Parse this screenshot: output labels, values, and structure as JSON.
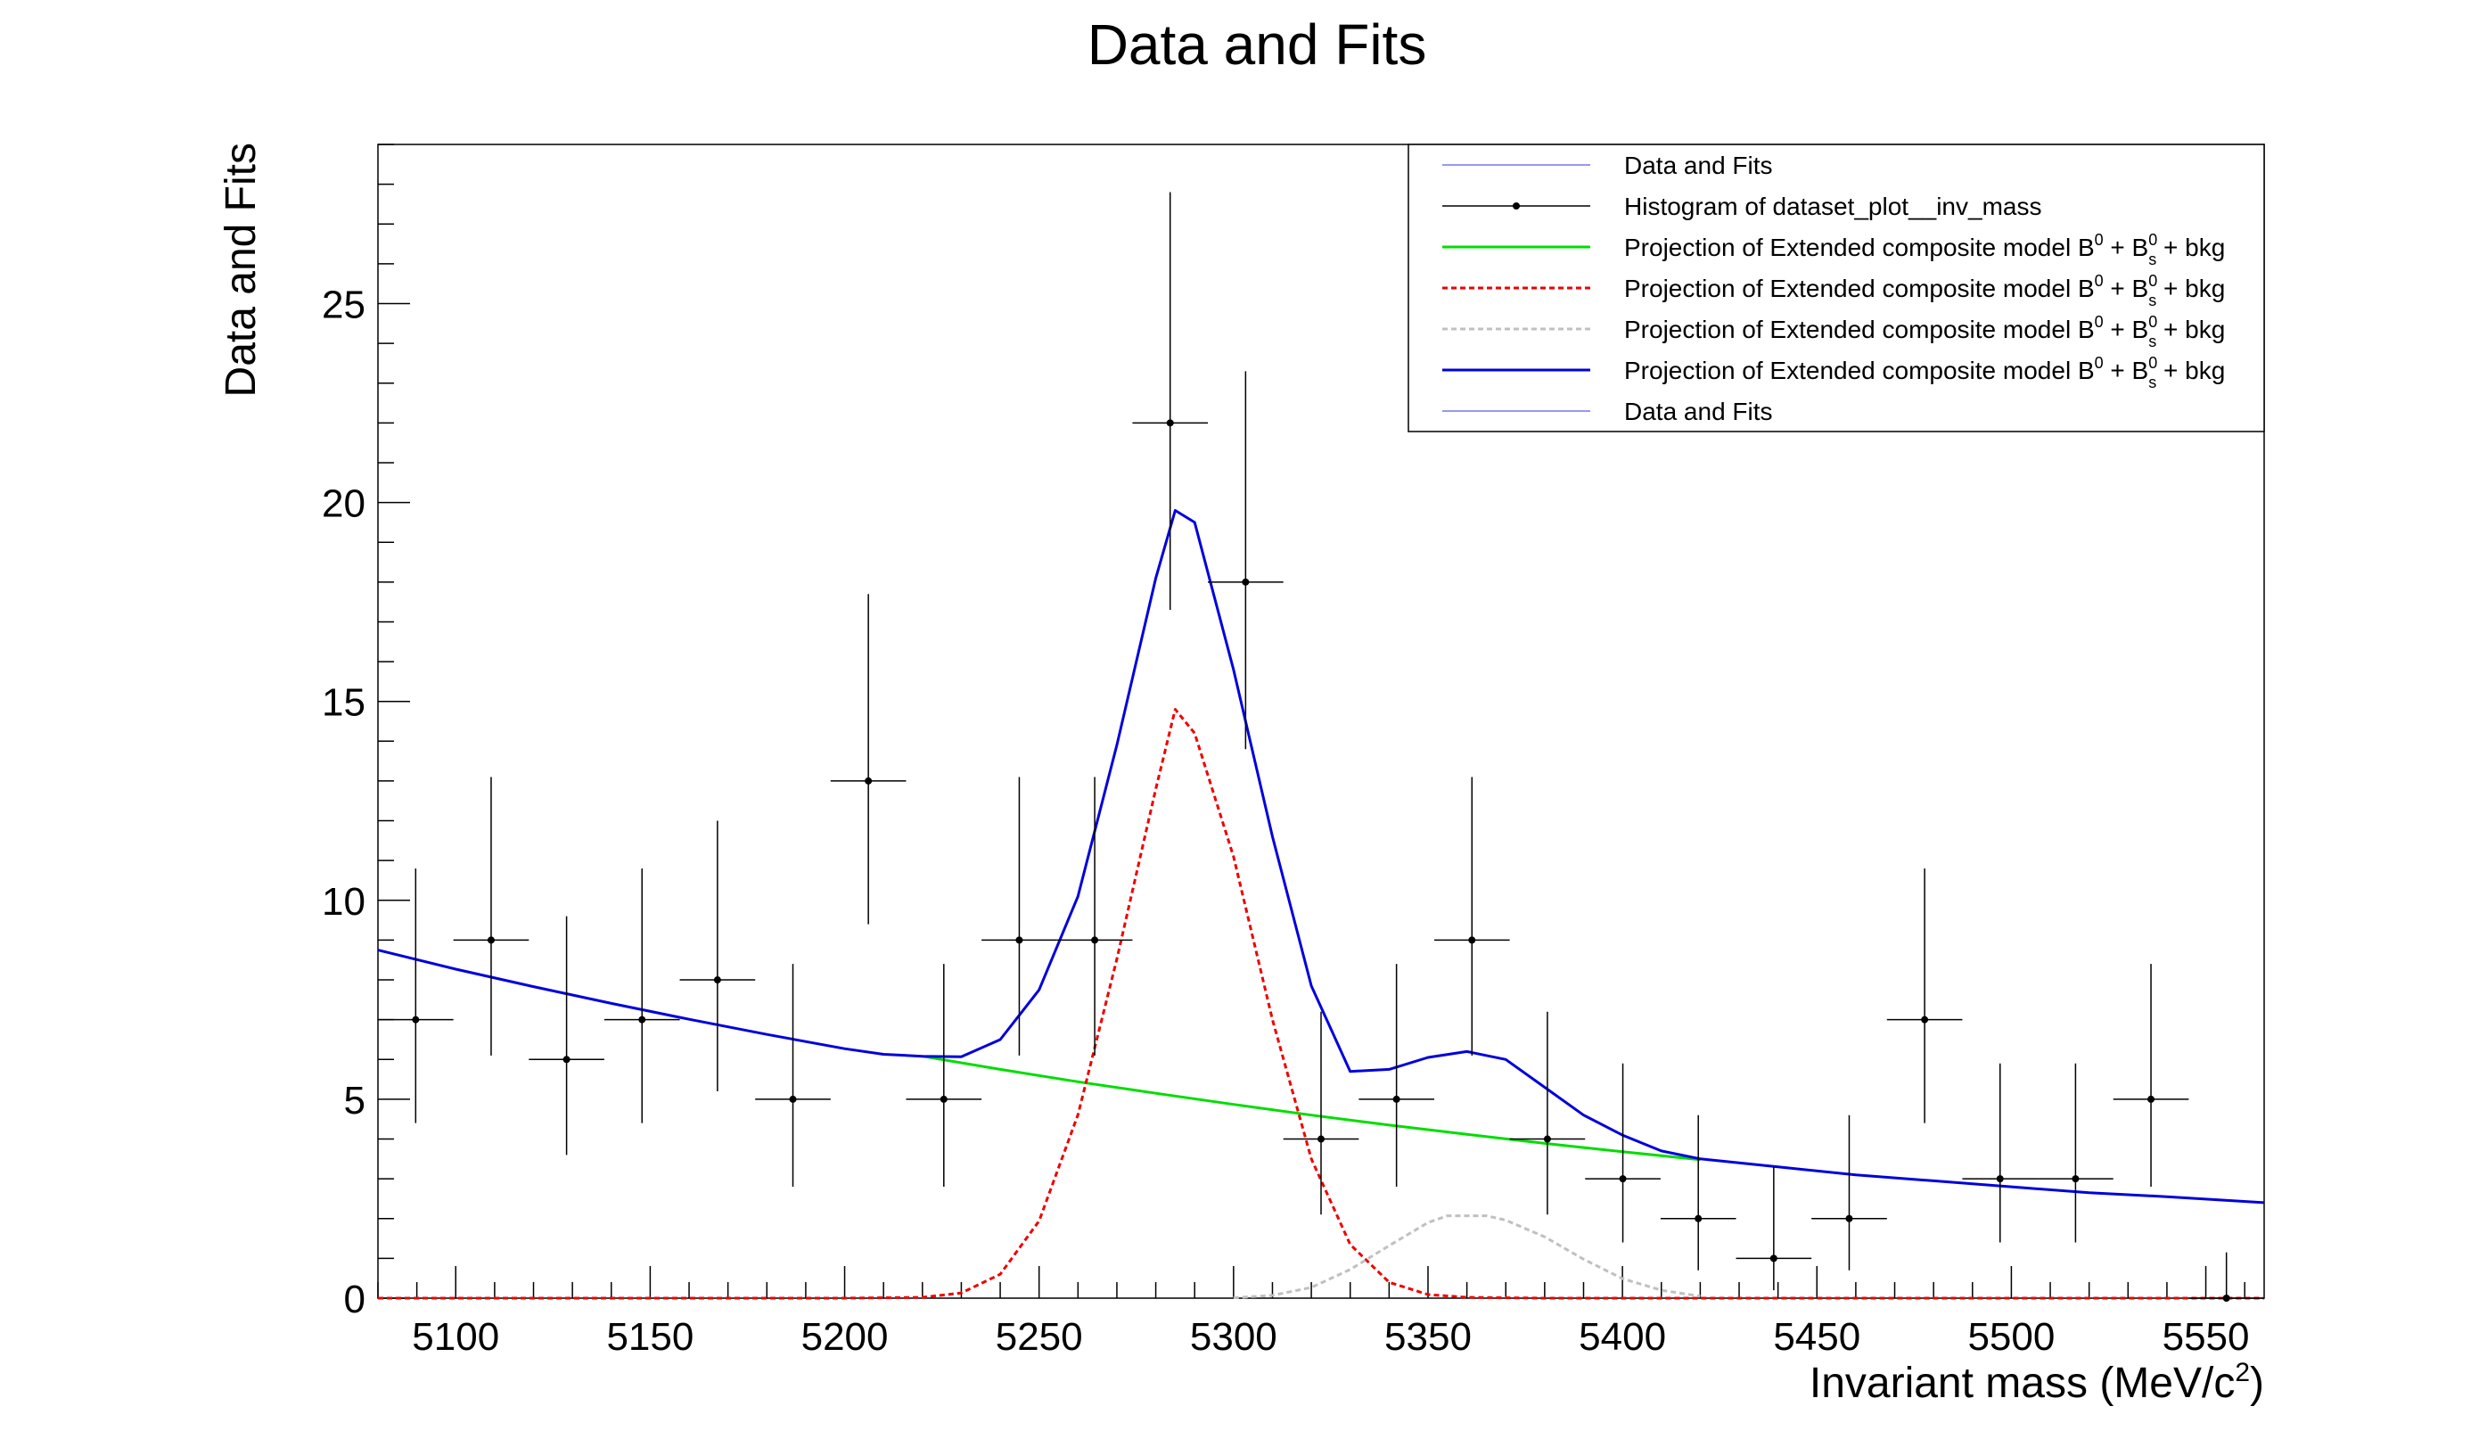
{
  "chart_data": {
    "type": "line",
    "title": "Data and Fits",
    "xlabel": "Invariant mass (MeV/c",
    "xlabel_sup": "2",
    "xlabel_end": ")",
    "ylabel": "Data and Fits",
    "xlim": [
      5080,
      5565
    ],
    "ylim": [
      0,
      29
    ],
    "xticks": [
      5100,
      5150,
      5200,
      5250,
      5300,
      5350,
      5400,
      5450,
      5500,
      5550
    ],
    "yticks": [
      0,
      5,
      10,
      15,
      20,
      25
    ],
    "grid": false,
    "legend_position": "top-right",
    "legend": [
      {
        "label": "Data and Fits",
        "style": "line",
        "color": "#7777ee",
        "dash": "",
        "width": 1.5
      },
      {
        "label": "Histogram of dataset_plot__inv_mass",
        "style": "marker",
        "color": "#000000",
        "dash": "",
        "width": 1.5
      },
      {
        "label": "Projection of Extended composite model B",
        "sup1": "0",
        "mid": " + B",
        "sup2": "0",
        "sub2": "s",
        "tail": " + bkg",
        "style": "line",
        "color": "#00dd00",
        "dash": "",
        "width": 3
      },
      {
        "label": "Projection of Extended composite model B",
        "sup1": "0",
        "mid": " + B",
        "sup2": "0",
        "sub2": "s",
        "tail": " + bkg",
        "style": "line",
        "color": "#ee0000",
        "dash": "6,4",
        "width": 3
      },
      {
        "label": "Projection of Extended composite model B",
        "sup1": "0",
        "mid": " + B",
        "sup2": "0",
        "sub2": "s",
        "tail": " + bkg",
        "style": "line",
        "color": "#c0c0c0",
        "dash": "6,4",
        "width": 3
      },
      {
        "label": "Projection of Extended composite model B",
        "sup1": "0",
        "mid": " + B",
        "sup2": "0",
        "sub2": "s",
        "tail": " + bkg",
        "style": "line",
        "color": "#0000dd",
        "dash": "",
        "width": 3
      },
      {
        "label": "Data and Fits",
        "style": "line",
        "color": "#7777ee",
        "dash": "",
        "width": 1.5
      }
    ],
    "histogram": {
      "name": "Histogram of dataset_plot__inv_mass",
      "bin_half_width": 9.7,
      "x": [
        5089.7,
        5109.1,
        5128.5,
        5147.9,
        5167.3,
        5186.7,
        5206.1,
        5225.5,
        5244.9,
        5264.3,
        5283.7,
        5303.1,
        5322.5,
        5341.9,
        5361.3,
        5380.7,
        5400.1,
        5419.5,
        5438.9,
        5458.3,
        5477.7,
        5497.1,
        5516.5,
        5535.9,
        5555.3
      ],
      "y": [
        7,
        9,
        6,
        7,
        8,
        5,
        13,
        5,
        9,
        9,
        22,
        18,
        4,
        5,
        9,
        4,
        3,
        2,
        1,
        2,
        7,
        3,
        3,
        5,
        0
      ],
      "err_low": [
        2.6,
        2.9,
        2.4,
        2.6,
        2.8,
        2.2,
        3.6,
        2.2,
        2.9,
        2.9,
        4.7,
        4.2,
        1.9,
        2.2,
        2.9,
        1.9,
        1.6,
        1.3,
        0.8,
        1.3,
        2.6,
        1.6,
        1.6,
        2.2,
        0
      ],
      "err_high": [
        3.8,
        4.1,
        3.6,
        3.8,
        4.0,
        3.4,
        4.7,
        3.4,
        4.1,
        4.1,
        5.8,
        5.3,
        3.2,
        3.4,
        4.1,
        3.2,
        2.9,
        2.6,
        2.3,
        2.6,
        3.8,
        2.9,
        2.9,
        3.4,
        1.15
      ]
    },
    "series": [
      {
        "color": "#00dd00",
        "dash": "",
        "width": 3,
        "x": [
          5220,
          5240,
          5260,
          5280,
          5300,
          5320,
          5340,
          5360,
          5380,
          5400,
          5420
        ],
        "y": [
          6.08,
          5.75,
          5.44,
          5.15,
          4.87,
          4.6,
          4.35,
          4.12,
          3.89,
          3.68,
          3.48
        ]
      },
      {
        "color": "#ee0000",
        "dash": "6,4",
        "width": 3,
        "x": [
          5080,
          5200,
          5220,
          5230,
          5240,
          5250,
          5260,
          5270,
          5280,
          5285,
          5290,
          5300,
          5310,
          5320,
          5330,
          5340,
          5350,
          5360,
          5380,
          5565
        ],
        "y": [
          0,
          0,
          0.02,
          0.13,
          0.6,
          1.94,
          4.61,
          8.52,
          12.8,
          14.8,
          14.2,
          11.1,
          7.0,
          3.5,
          1.35,
          0.4,
          0.09,
          0.02,
          0,
          0
        ]
      },
      {
        "color": "#c0c0c0",
        "dash": "6,4",
        "width": 3,
        "x": [
          5300,
          5310,
          5320,
          5330,
          5340,
          5350,
          5355,
          5365,
          5370,
          5380,
          5390,
          5400,
          5410,
          5420
        ],
        "y": [
          0.01,
          0.07,
          0.27,
          0.72,
          1.32,
          1.9,
          2.07,
          2.07,
          1.96,
          1.54,
          0.98,
          0.49,
          0.2,
          0.05
        ]
      },
      {
        "color": "#0000dd",
        "dash": "",
        "width": 3,
        "x": [
          5080,
          5100,
          5120,
          5140,
          5160,
          5180,
          5200,
          5210,
          5220,
          5230,
          5240,
          5250,
          5260,
          5270,
          5280,
          5285,
          5290,
          5300,
          5310,
          5320,
          5330,
          5340,
          5350,
          5360,
          5370,
          5380,
          5390,
          5400,
          5410,
          5420,
          5440,
          5460,
          5480,
          5500,
          5520,
          5540,
          5565
        ],
        "y": [
          8.75,
          8.27,
          7.83,
          7.41,
          7.01,
          6.63,
          6.27,
          6.13,
          6.08,
          6.07,
          6.5,
          7.75,
          10.1,
          13.9,
          18.1,
          19.8,
          19.5,
          15.8,
          11.6,
          7.85,
          5.7,
          5.75,
          6.05,
          6.2,
          6.0,
          5.3,
          4.6,
          4.1,
          3.7,
          3.5,
          3.3,
          3.1,
          2.95,
          2.8,
          2.65,
          2.55,
          2.4
        ]
      }
    ]
  }
}
